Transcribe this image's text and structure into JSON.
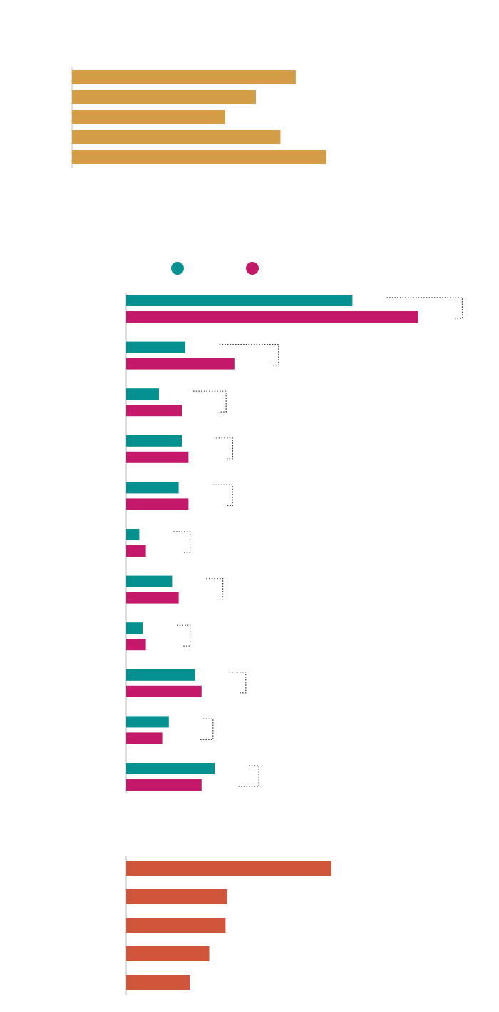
{
  "colors": {
    "gold": "#D39C46",
    "teal": "#05918F",
    "magenta": "#C4186A",
    "orange": "#D0553A",
    "axis": "#BDBDBD",
    "connector": "#333333",
    "background": "#FFFFFF"
  },
  "chart_data": [
    {
      "type": "bar",
      "orientation": "horizontal",
      "categories": [
        "",
        "",
        "",
        "",
        ""
      ],
      "values": [
        73,
        60,
        50,
        68,
        83
      ],
      "xlim": [
        0,
        100
      ],
      "legend": "none",
      "grid": false
    },
    {
      "type": "bar",
      "orientation": "horizontal",
      "categories": [
        "",
        "",
        "",
        "",
        "",
        "",
        "",
        "",
        "",
        "",
        ""
      ],
      "series": [
        {
          "color_key": "teal",
          "values": [
            69,
            18,
            10,
            17,
            16,
            4,
            14,
            5,
            21,
            13,
            27
          ]
        },
        {
          "color_key": "magenta",
          "values": [
            89,
            33,
            17,
            19,
            19,
            6,
            16,
            6,
            23,
            11,
            23
          ]
        }
      ],
      "xlim": [
        0,
        100
      ],
      "legend": "top",
      "legend_markers": [
        "teal",
        "magenta"
      ],
      "annotation_connectors": true,
      "grid": false
    },
    {
      "type": "bar",
      "orientation": "horizontal",
      "categories": [
        "",
        "",
        "",
        "",
        ""
      ],
      "values": [
        63,
        31,
        30.5,
        25.5,
        19.5
      ],
      "xlim": [
        0,
        100
      ],
      "legend": "none",
      "grid": false
    }
  ]
}
